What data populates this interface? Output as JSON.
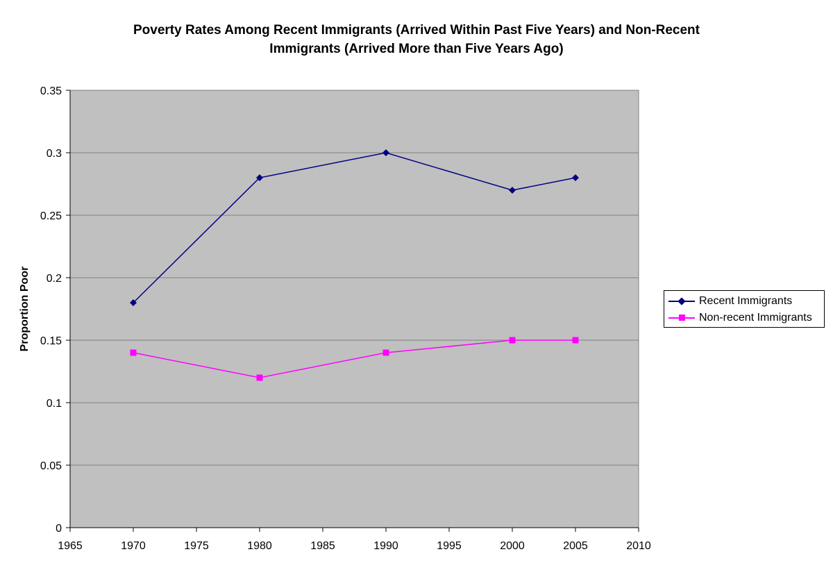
{
  "chart_data": {
    "type": "line",
    "title_lines": [
      "Poverty Rates Among Recent Immigrants (Arrived Within Past Five Years) and Non-Recent",
      "Immigrants (Arrived More than Five Years Ago)"
    ],
    "xlabel": "",
    "ylabel": "Proportion Poor",
    "xlim": [
      1965,
      2010
    ],
    "ylim": [
      0,
      0.35
    ],
    "x_ticks": [
      "1965",
      "1970",
      "1975",
      "1980",
      "1985",
      "1990",
      "1995",
      "2000",
      "2005",
      "2010"
    ],
    "y_ticks": [
      "0",
      "0.05",
      "0.1",
      "0.15",
      "0.2",
      "0.25",
      "0.3",
      "0.35"
    ],
    "grid": true,
    "legend_placement": "right",
    "plot_background": "#c0c0c0",
    "series": [
      {
        "name": "Recent Immigrants",
        "color": "#000080",
        "marker": "diamond",
        "x": [
          1970,
          1980,
          1990,
          2000,
          2005
        ],
        "values": [
          0.18,
          0.28,
          0.3,
          0.27,
          0.28
        ]
      },
      {
        "name": "Non-recent Immigrants",
        "color": "#ff00ff",
        "marker": "square",
        "x": [
          1970,
          1980,
          1990,
          2000,
          2005
        ],
        "values": [
          0.14,
          0.12,
          0.14,
          0.15,
          0.15
        ]
      }
    ]
  }
}
